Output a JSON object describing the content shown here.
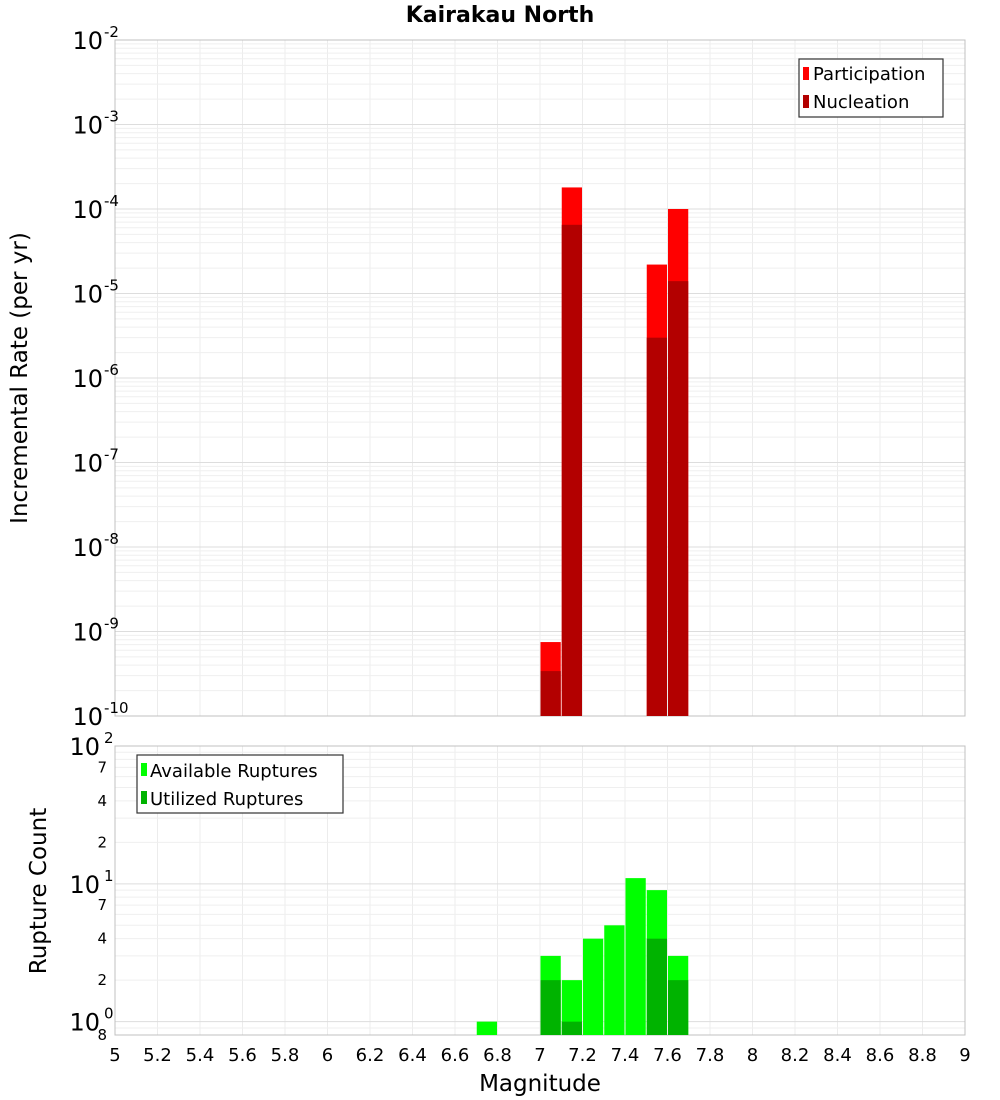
{
  "chart_data": [
    {
      "type": "bar",
      "title": "Kairakau North",
      "ylabel": "Incremental Rate (per yr)",
      "xlabel": "",
      "xlim": [
        5,
        9
      ],
      "ylim_exponents": [
        -10,
        -2
      ],
      "yscale": "log",
      "y_tick_labels": [
        {
          "base": "10",
          "exp": "-2"
        },
        {
          "base": "10",
          "exp": "-3"
        },
        {
          "base": "10",
          "exp": "-4"
        },
        {
          "base": "10",
          "exp": "-5"
        },
        {
          "base": "10",
          "exp": "-6"
        },
        {
          "base": "10",
          "exp": "-7"
        },
        {
          "base": "10",
          "exp": "-8"
        },
        {
          "base": "10",
          "exp": "-9"
        },
        {
          "base": "10",
          "exp": "-10"
        }
      ],
      "series": [
        {
          "name": "Participation",
          "color": "#ff0000",
          "points": [
            {
              "x": 7.05,
              "y": 7.5e-10
            },
            {
              "x": 7.15,
              "y": 0.00018
            },
            {
              "x": 7.55,
              "y": 2.2e-05
            },
            {
              "x": 7.65,
              "y": 0.0001
            }
          ]
        },
        {
          "name": "Nucleation",
          "color": "#b30000",
          "points": [
            {
              "x": 7.05,
              "y": 3.4e-10
            },
            {
              "x": 7.15,
              "y": 6.5e-05
            },
            {
              "x": 7.55,
              "y": 3e-06
            },
            {
              "x": 7.65,
              "y": 1.4e-05
            }
          ]
        }
      ],
      "legend": {
        "position": "top-right",
        "items": [
          "Participation",
          "Nucleation"
        ]
      }
    },
    {
      "type": "bar",
      "title": "",
      "ylabel": "Rupture Count",
      "xlabel": "Magnitude",
      "xlim": [
        5,
        9
      ],
      "ylim": [
        0.8,
        100
      ],
      "yscale": "log",
      "x_ticks": [
        "5",
        "5.2",
        "5.4",
        "5.6",
        "5.8",
        "6",
        "6.2",
        "6.4",
        "6.6",
        "6.8",
        "7",
        "7.2",
        "7.4",
        "7.6",
        "7.8",
        "8",
        "8.2",
        "8.4",
        "8.6",
        "8.8",
        "9"
      ],
      "y_decade_labels": [
        {
          "value": 100,
          "base": "10",
          "exp": "2"
        },
        {
          "value": 10,
          "base": "10",
          "exp": "1"
        },
        {
          "value": 1,
          "base": "10",
          "exp": "0"
        }
      ],
      "y_minor_labels": [
        {
          "value": 70,
          "label": "7"
        },
        {
          "value": 40,
          "label": "4"
        },
        {
          "value": 20,
          "label": "2"
        },
        {
          "value": 7,
          "label": "7"
        },
        {
          "value": 4,
          "label": "4"
        },
        {
          "value": 2,
          "label": "2"
        },
        {
          "value": 0.8,
          "label": "8"
        }
      ],
      "series": [
        {
          "name": "Available Ruptures",
          "color": "#00ff00",
          "points": [
            {
              "x": 6.75,
              "y": 1
            },
            {
              "x": 7.05,
              "y": 3
            },
            {
              "x": 7.15,
              "y": 2
            },
            {
              "x": 7.25,
              "y": 4
            },
            {
              "x": 7.35,
              "y": 5
            },
            {
              "x": 7.45,
              "y": 11
            },
            {
              "x": 7.55,
              "y": 9
            },
            {
              "x": 7.65,
              "y": 3
            }
          ]
        },
        {
          "name": "Utilized Ruptures",
          "color": "#00b300",
          "points": [
            {
              "x": 7.05,
              "y": 2
            },
            {
              "x": 7.15,
              "y": 1
            },
            {
              "x": 7.55,
              "y": 4
            },
            {
              "x": 7.65,
              "y": 2
            }
          ]
        }
      ],
      "legend": {
        "position": "top-left",
        "items": [
          "Available Ruptures",
          "Utilized Ruptures"
        ]
      }
    }
  ]
}
